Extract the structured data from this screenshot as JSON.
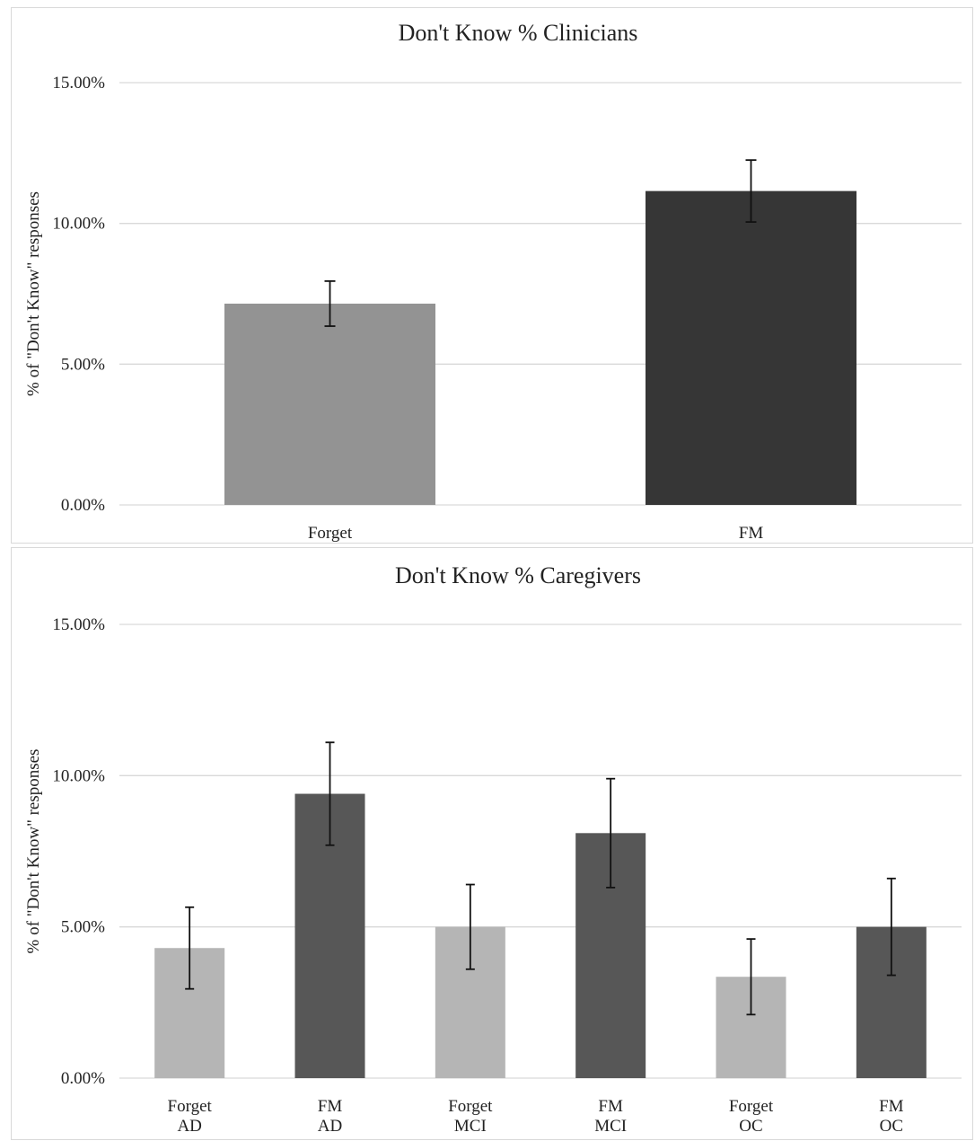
{
  "chart_data": [
    {
      "type": "bar",
      "title": "Don't Know % Clinicians",
      "ylabel": "% of \"Don't Know\" responses",
      "xlabel": "",
      "ylim": [
        0,
        15
      ],
      "y_ticks": [
        "0.00%",
        "5.00%",
        "10.00%",
        "15.00%"
      ],
      "grid": true,
      "categories": [
        [
          "Forget"
        ],
        [
          "FM"
        ]
      ],
      "values": [
        7.15,
        11.15
      ],
      "error": [
        0.8,
        1.1
      ],
      "colors": [
        "#939393",
        "#363636"
      ]
    },
    {
      "type": "bar",
      "title": "Don't Know % Caregivers",
      "ylabel": "% of \"Don't Know\" responses",
      "xlabel": "",
      "ylim": [
        0,
        15
      ],
      "y_ticks": [
        "0.00%",
        "5.00%",
        "10.00%",
        "15.00%"
      ],
      "grid": true,
      "categories": [
        [
          "Forget",
          "AD"
        ],
        [
          "FM",
          "AD"
        ],
        [
          "Forget",
          "MCI"
        ],
        [
          "FM",
          "MCI"
        ],
        [
          "Forget",
          "OC"
        ],
        [
          "FM",
          "OC"
        ]
      ],
      "values": [
        4.3,
        9.4,
        5.0,
        8.1,
        3.35,
        5.0
      ],
      "error": [
        1.35,
        1.7,
        1.4,
        1.8,
        1.25,
        1.6
      ],
      "colors": [
        "#b5b5b5",
        "#575757",
        "#b5b5b5",
        "#575757",
        "#b5b5b5",
        "#575757"
      ]
    }
  ]
}
